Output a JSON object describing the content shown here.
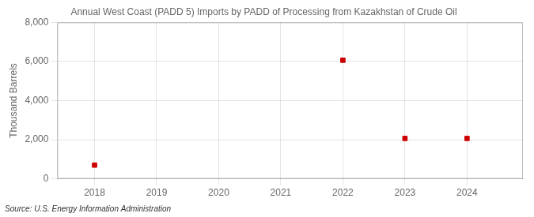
{
  "chart_data": {
    "type": "scatter",
    "title": "Annual West Coast (PADD 5) Imports by PADD of Processing from Kazakhstan of Crude Oil",
    "ylabel": "Thousand Barrels",
    "source": "Source: U.S. Energy Information Administration",
    "x": [
      2018,
      2022,
      2023,
      2024
    ],
    "values": [
      700,
      6065,
      2065,
      2065
    ],
    "color": "#cc0000",
    "marker": "square",
    "xlim": [
      2017.4,
      2024.9
    ],
    "ylim": [
      0,
      8000
    ],
    "xticks": [
      2018,
      2019,
      2020,
      2021,
      2022,
      2023,
      2024
    ],
    "yticks": [
      0,
      {
        "value": 2000,
        "label": "2,000"
      },
      {
        "value": 4000,
        "label": "4,000"
      },
      {
        "value": 6000,
        "label": "6,000"
      },
      {
        "value": 8000,
        "label": "8,000"
      }
    ],
    "grid": true
  }
}
